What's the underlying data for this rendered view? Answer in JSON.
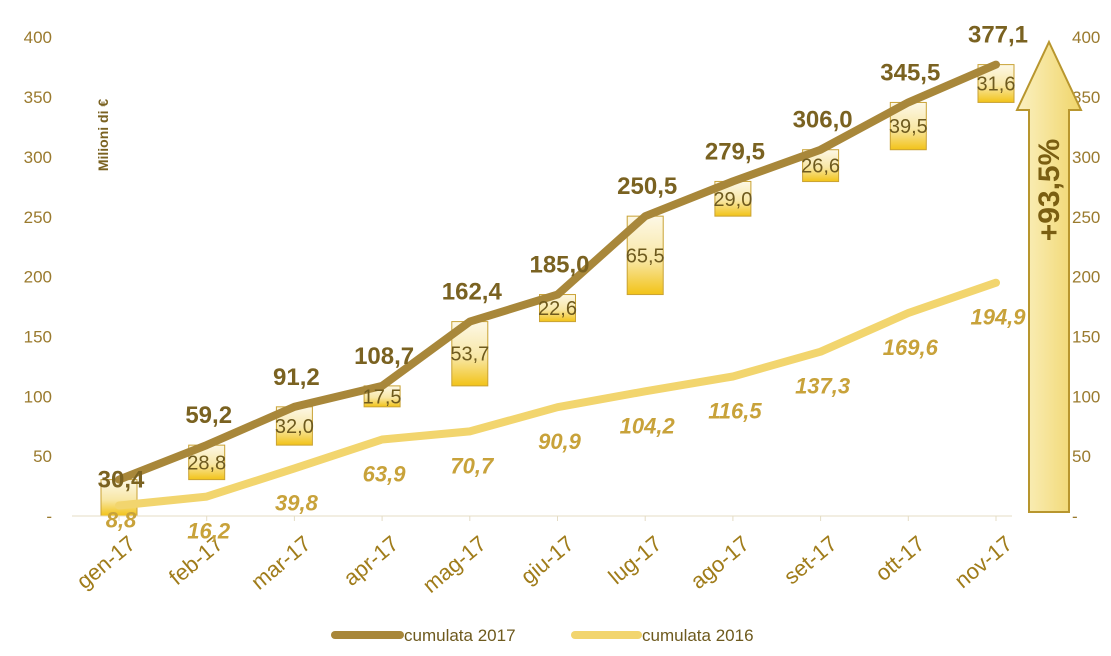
{
  "chart_data": {
    "type": "line",
    "categories": [
      "gen-17",
      "feb-17",
      "mar-17",
      "apr-17",
      "mag-17",
      "giu-17",
      "lug-17",
      "ago-17",
      "set-17",
      "ott-17",
      "nov-17"
    ],
    "series": [
      {
        "name": "cumulata 2017",
        "values": [
          30.4,
          59.2,
          91.2,
          108.7,
          162.4,
          185.0,
          250.5,
          279.5,
          306.0,
          345.5,
          377.1
        ],
        "labels": [
          "30,4",
          "59,2",
          "91,2",
          "108,7",
          "162,4",
          "185,0",
          "250,5",
          "279,5",
          "306,0",
          "345,5",
          "377,1"
        ]
      },
      {
        "name": "cumulata 2016",
        "values": [
          8.8,
          16.2,
          39.8,
          63.9,
          70.7,
          90.9,
          104.2,
          116.5,
          137.3,
          169.6,
          194.9
        ],
        "labels": [
          "8,8",
          "16,2",
          "39,8",
          "63,9",
          "70,7",
          "90,9",
          "104,2",
          "116,5",
          "137,3",
          "169,6",
          "194,9"
        ]
      }
    ],
    "monthly_2017": {
      "values": [
        30.4,
        28.8,
        32.0,
        17.5,
        53.7,
        22.6,
        65.5,
        29.0,
        26.6,
        39.5,
        31.6
      ],
      "labels": [
        "",
        "28,8",
        "32,0",
        "17,5",
        "53,7",
        "22,6",
        "65,5",
        "29,0",
        "26,6",
        "39,5",
        "31,6"
      ]
    },
    "ylabel": "Milioni di €",
    "ylim": [
      0,
      400
    ],
    "yticks": [
      0,
      50,
      100,
      150,
      200,
      250,
      300,
      350,
      400
    ],
    "ytick_labels": [
      "-",
      "50",
      "100",
      "150",
      "200",
      "250",
      "300",
      "350",
      "400"
    ],
    "annotation": "+93,5%",
    "legend_position": "bottom",
    "grid": false,
    "colors": {
      "series_2017": "#a8873a",
      "series_2016": "#f2d56e",
      "bar_top": "#fdf8e6",
      "bar_bottom": "#f2c318",
      "bar_stroke": "#c9a234",
      "arrow_fill": "#f6e493",
      "arrow_stroke": "#b8962e"
    }
  }
}
